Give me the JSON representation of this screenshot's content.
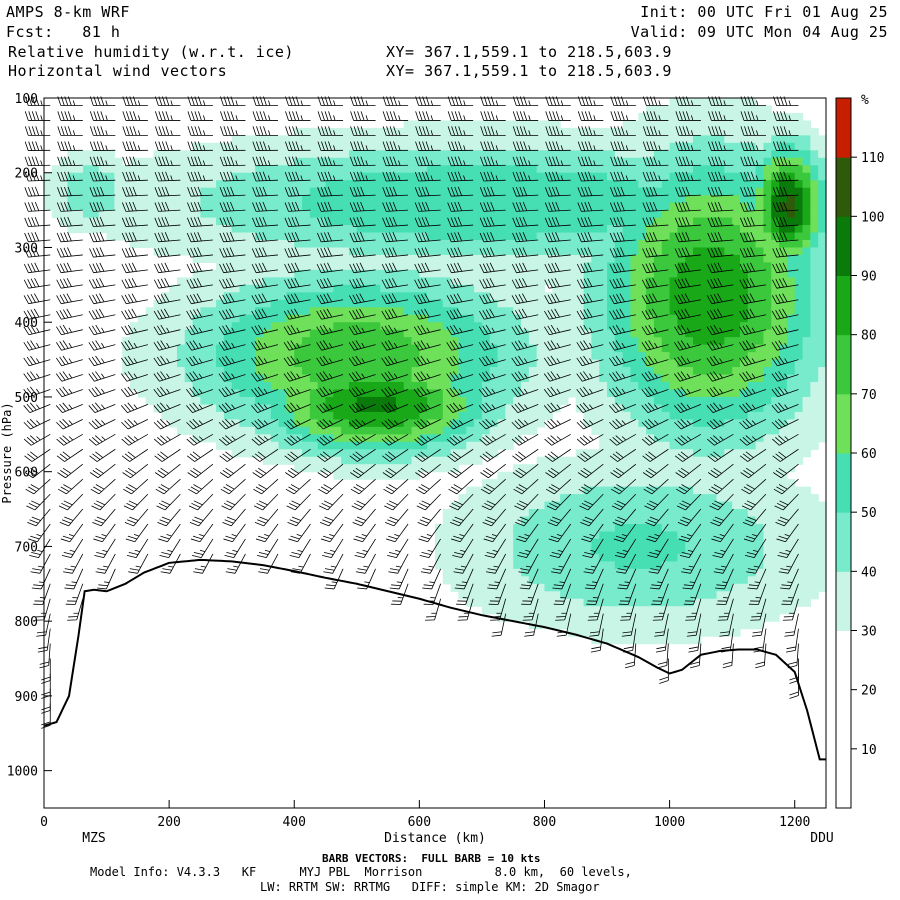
{
  "header": {
    "model": "AMPS 8-km WRF",
    "fcst": "Fcst:   81 h",
    "field1": "Relative humidity (w.r.t. ice)",
    "field2": "Horizontal wind vectors",
    "xy1": "XY= 367.1,559.1 to 218.5,603.9",
    "xy2": "XY= 367.1,559.1 to 218.5,603.9",
    "init": "Init: 00 UTC Fri 01 Aug 25",
    "valid": "Valid: 09 UTC Mon 04 Aug 25"
  },
  "footer": {
    "barb": "BARB VECTORS:  FULL BARB = 10 kts",
    "model_info": "Model Info: V4.3.3   KF      MYJ PBL  Morrison          8.0 km,  60 levels,",
    "physics": "LW: RRTM SW: RRTMG   DIFF: simple KM: 2D Smagor"
  },
  "chart_data": {
    "type": "heatmap",
    "xlabel": "Distance (km)",
    "ylabel": "Pressure (hPa)",
    "xlim": [
      0,
      1250
    ],
    "ylim": [
      100,
      1050
    ],
    "x_ticks": [
      0,
      200,
      400,
      600,
      800,
      1000,
      1200
    ],
    "y_ticks": [
      100,
      200,
      300,
      400,
      500,
      600,
      700,
      800,
      900,
      1000
    ],
    "endpoints": {
      "left": "MZS",
      "right": "DDU"
    },
    "colorbar": {
      "unit": "%",
      "levels": [
        10,
        20,
        30,
        40,
        50,
        60,
        70,
        80,
        90,
        100,
        110
      ],
      "colors": [
        "#ffffff",
        "#ffffff",
        "#ffffff",
        "#c8f5e6",
        "#78ebcc",
        "#46dfb4",
        "#6ee05a",
        "#3cc83c",
        "#18a818",
        "#0a7a0a",
        "#2e5a0a",
        "#c81e00"
      ]
    },
    "terrain": {
      "x": [
        0,
        20,
        40,
        55,
        65,
        80,
        100,
        130,
        160,
        200,
        250,
        300,
        350,
        400,
        450,
        500,
        550,
        600,
        650,
        700,
        750,
        800,
        850,
        900,
        950,
        980,
        1000,
        1020,
        1050,
        1080,
        1110,
        1140,
        1170,
        1200,
        1220,
        1240
      ],
      "p": [
        940,
        935,
        900,
        820,
        760,
        758,
        760,
        750,
        735,
        722,
        718,
        720,
        725,
        733,
        742,
        750,
        760,
        770,
        782,
        792,
        800,
        808,
        818,
        830,
        848,
        862,
        870,
        865,
        845,
        840,
        838,
        838,
        845,
        868,
        920,
        985
      ]
    },
    "features": [
      {
        "kind": "moist_band",
        "x": [
          0,
          150
        ],
        "p": [
          170,
          280
        ],
        "rh": 48
      },
      {
        "kind": "moist_band",
        "x": [
          150,
          1250
        ],
        "p": [
          150,
          330
        ],
        "rh": 60
      },
      {
        "kind": "moist_band",
        "x": [
          220,
          780
        ],
        "p": [
          330,
          560
        ],
        "rh": 78
      },
      {
        "kind": "moist_band",
        "x": [
          340,
          720
        ],
        "p": [
          440,
          580
        ],
        "rh": 92
      },
      {
        "kind": "moist_band",
        "x": [
          880,
          1250
        ],
        "p": [
          170,
          560
        ],
        "rh": 88
      },
      {
        "kind": "moist_band",
        "x": [
          1130,
          1250
        ],
        "p": [
          160,
          330
        ],
        "rh": 102
      },
      {
        "kind": "moist_band",
        "x": [
          650,
          1250
        ],
        "p": [
          580,
          820
        ],
        "rh": 52
      }
    ],
    "wind_profile": [
      {
        "p": 150,
        "speed_kt": 45,
        "dir_deg": 270
      },
      {
        "p": 300,
        "speed_kt": 40,
        "dir_deg": 265
      },
      {
        "p": 500,
        "speed_kt": 35,
        "dir_deg": 250
      },
      {
        "p": 700,
        "speed_kt": 25,
        "dir_deg": 210
      },
      {
        "p": 850,
        "speed_kt": 20,
        "dir_deg": 180
      }
    ]
  }
}
